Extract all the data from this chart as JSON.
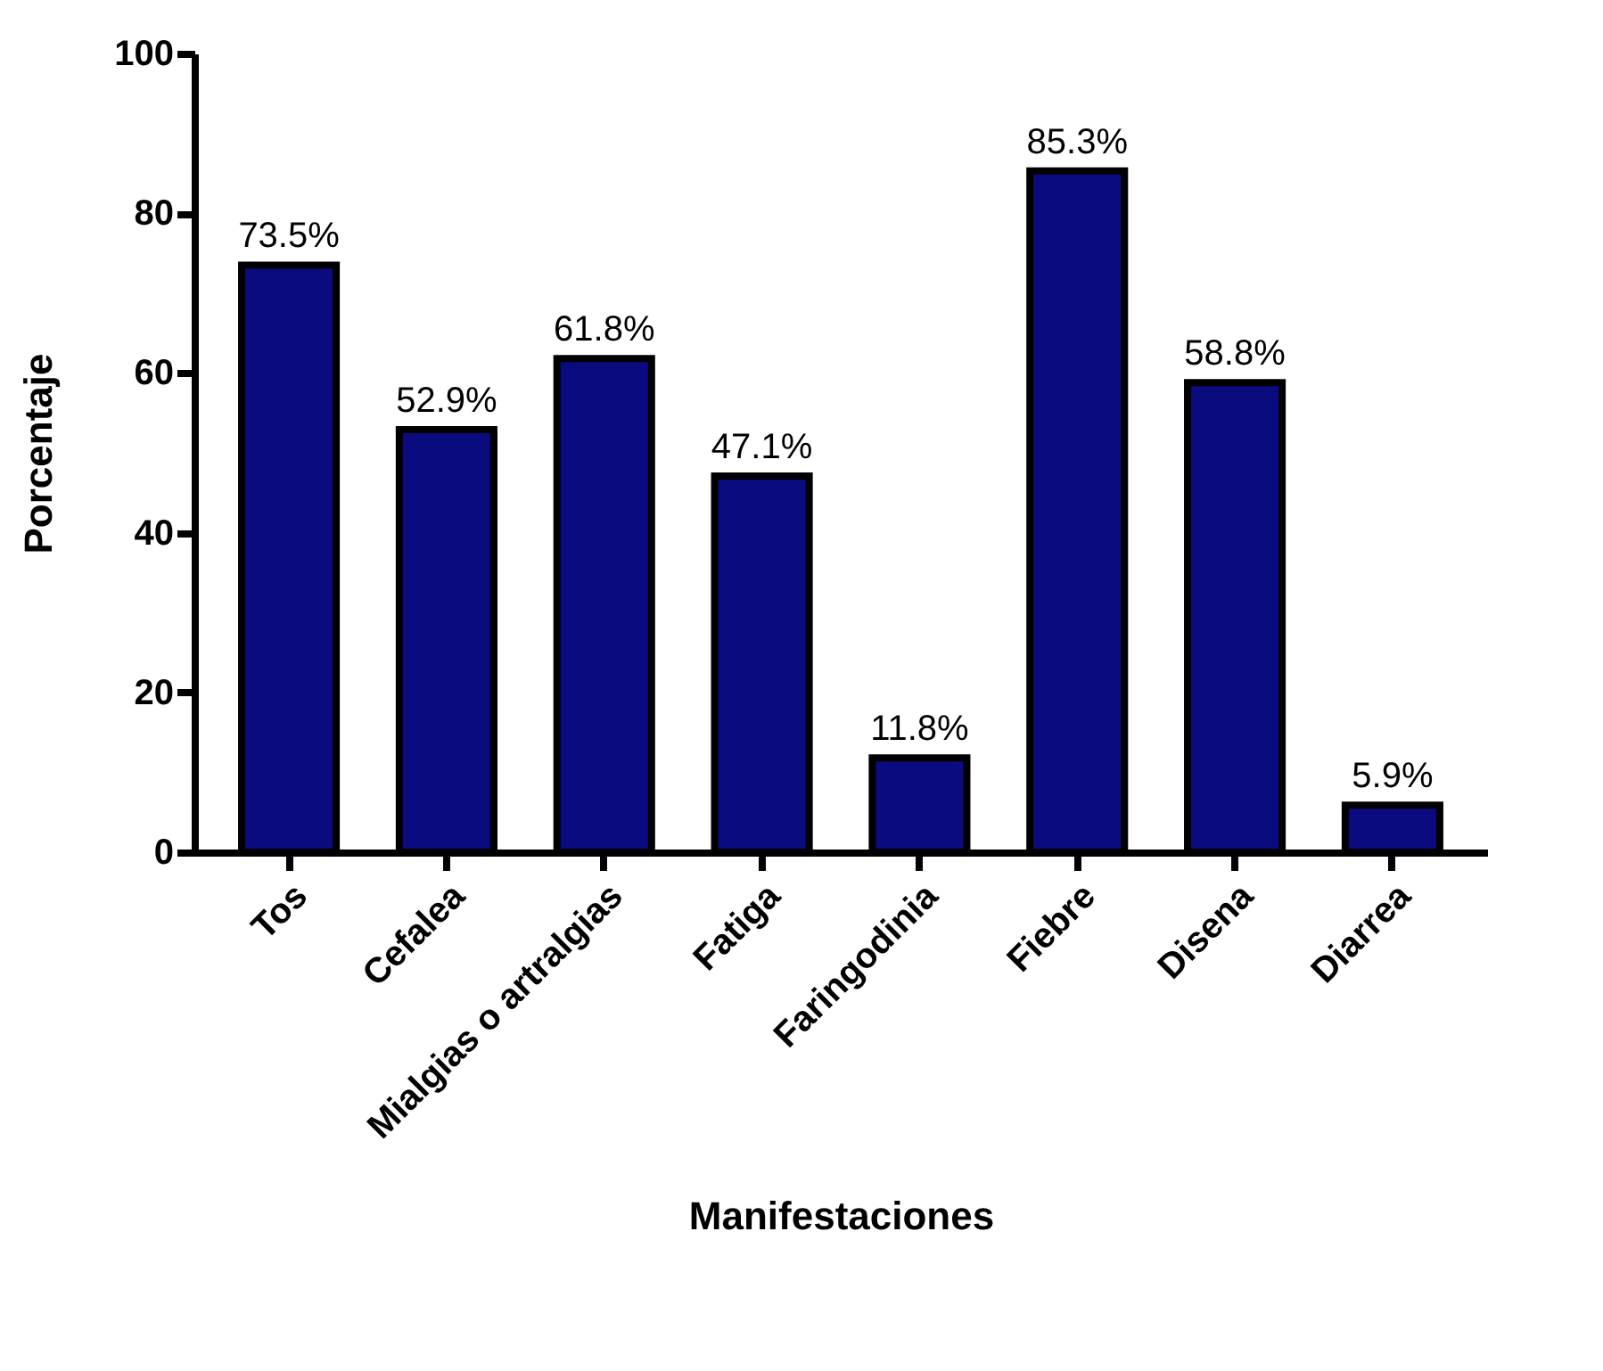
{
  "chart_data": {
    "type": "bar",
    "xlabel": "Manifestaciones",
    "ylabel": "Porcentaje",
    "categories": [
      "Tos",
      "Cefalea",
      "Mialgias o artralgias",
      "Fatiga",
      "Faringodinia",
      "Fiebre",
      "Disena",
      "Diarrea"
    ],
    "values": [
      73.5,
      52.9,
      61.8,
      47.1,
      11.8,
      85.3,
      58.8,
      5.9
    ],
    "value_labels": [
      "73.5%",
      "52.9%",
      "61.8%",
      "47.1%",
      "11.8%",
      "85.3%",
      "58.8%",
      "5.9%"
    ],
    "color": "#0b0b80",
    "ylim": [
      0,
      100
    ],
    "yticks": [
      0,
      20,
      40,
      60,
      80,
      100
    ],
    "grid": false
  }
}
